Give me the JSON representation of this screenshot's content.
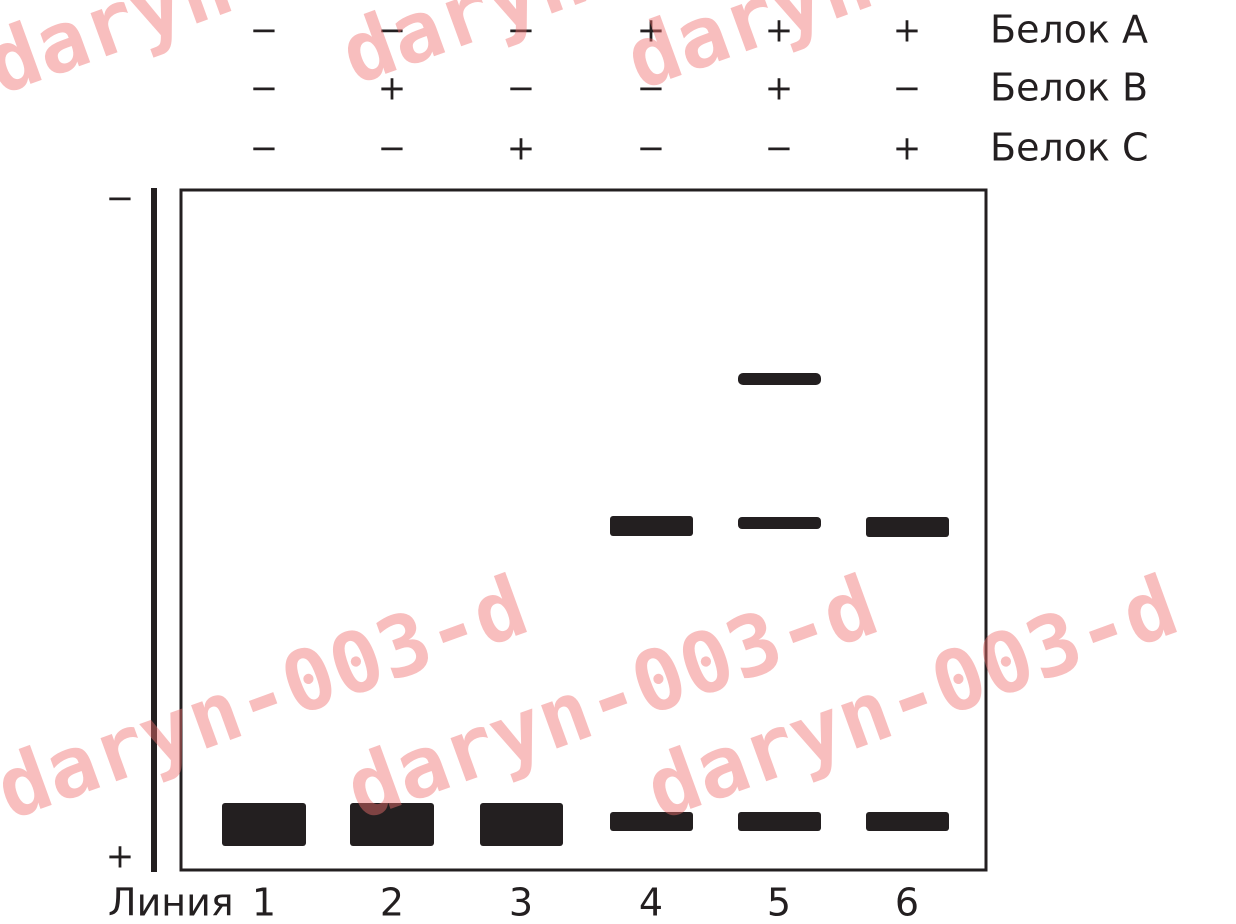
{
  "header": {
    "rows": [
      {
        "label": "Белок А",
        "signs": [
          "−",
          "−",
          "−",
          "+",
          "+",
          "+"
        ]
      },
      {
        "label": "Белок В",
        "signs": [
          "−",
          "+",
          "−",
          "−",
          "+",
          "−"
        ]
      },
      {
        "label": "Белок С",
        "signs": [
          "−",
          "−",
          "+",
          "−",
          "−",
          "+"
        ]
      }
    ]
  },
  "gel": {
    "minus": "−",
    "plus": "+"
  },
  "footer": {
    "label": "Линия",
    "lanes": [
      "1",
      "2",
      "3",
      "4",
      "5",
      "6"
    ]
  },
  "watermark": "daryn-003-d"
}
